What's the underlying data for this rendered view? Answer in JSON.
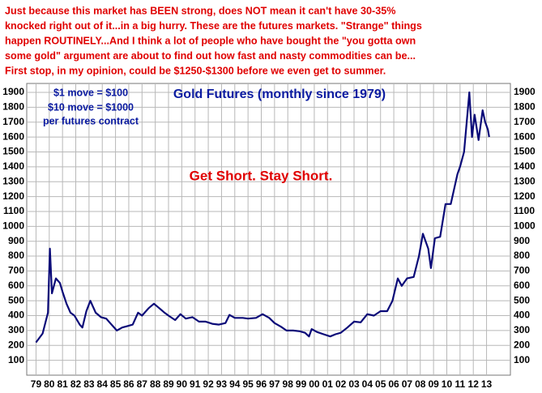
{
  "chart_data": {
    "type": "line",
    "header_lines": [
      "Just because this market has BEEN strong, does NOT mean it can't have 30-35%",
      "knocked right out of it...in a big hurry. These are the futures markets. \"Strange\" things",
      "happen ROUTINELY...And I think a lot of people who have bought the \"you gotta own",
      "some gold\" argument are about to find out how fast and nasty commodities can be...",
      "First stop, in my opinion, could be $1250-$1300 before we even get to summer."
    ],
    "title": "Gold Futures (monthly since 1979)",
    "annotations": [
      "$1 move = $100",
      "$10 move = $1000",
      "per futures contract",
      "Get Short. Stay Short."
    ],
    "color": "#0a0a78",
    "grid": true,
    "xlim": [
      1978.3,
      2014.8
    ],
    "ylim": [
      0,
      1960
    ],
    "yticks": [
      100,
      200,
      300,
      400,
      500,
      600,
      700,
      800,
      900,
      1000,
      1100,
      1200,
      1300,
      1400,
      1500,
      1600,
      1700,
      1800,
      1900
    ],
    "xticks": [
      {
        "value": 1979,
        "label": "79"
      },
      {
        "value": 1980,
        "label": "80"
      },
      {
        "value": 1981,
        "label": "81"
      },
      {
        "value": 1982,
        "label": "82"
      },
      {
        "value": 1983,
        "label": "83"
      },
      {
        "value": 1984,
        "label": "84"
      },
      {
        "value": 1985,
        "label": "85"
      },
      {
        "value": 1986,
        "label": "86"
      },
      {
        "value": 1987,
        "label": "87"
      },
      {
        "value": 1988,
        "label": "88"
      },
      {
        "value": 1989,
        "label": "89"
      },
      {
        "value": 1990,
        "label": "90"
      },
      {
        "value": 1991,
        "label": "91"
      },
      {
        "value": 1992,
        "label": "92"
      },
      {
        "value": 1993,
        "label": "93"
      },
      {
        "value": 1994,
        "label": "94"
      },
      {
        "value": 1995,
        "label": "95"
      },
      {
        "value": 1996,
        "label": "96"
      },
      {
        "value": 1997,
        "label": "97"
      },
      {
        "value": 1998,
        "label": "98"
      },
      {
        "value": 1999,
        "label": "99"
      },
      {
        "value": 2000,
        "label": "00"
      },
      {
        "value": 2001,
        "label": "01"
      },
      {
        "value": 2002,
        "label": "02"
      },
      {
        "value": 2003,
        "label": "03"
      },
      {
        "value": 2004,
        "label": "04"
      },
      {
        "value": 2005,
        "label": "05"
      },
      {
        "value": 2006,
        "label": "06"
      },
      {
        "value": 2007,
        "label": "07"
      },
      {
        "value": 2008,
        "label": "08"
      },
      {
        "value": 2009,
        "label": "09"
      },
      {
        "value": 2010,
        "label": "10"
      },
      {
        "value": 2011,
        "label": "11"
      },
      {
        "value": 2012,
        "label": "12"
      },
      {
        "value": 2013,
        "label": "13"
      }
    ],
    "x": [
      1979.0,
      1979.5,
      1979.9,
      1980.05,
      1980.2,
      1980.5,
      1980.8,
      1981.0,
      1981.3,
      1981.6,
      1981.9,
      1982.3,
      1982.5,
      1982.8,
      1983.1,
      1983.5,
      1983.9,
      1984.3,
      1984.7,
      1985.1,
      1985.5,
      1985.9,
      1986.3,
      1986.7,
      1987.0,
      1987.5,
      1987.9,
      1988.3,
      1988.7,
      1989.0,
      1989.5,
      1989.9,
      1990.3,
      1990.8,
      1991.3,
      1991.8,
      1992.3,
      1992.8,
      1993.3,
      1993.6,
      1994.0,
      1994.6,
      1995.0,
      1995.6,
      1996.1,
      1996.6,
      1997.0,
      1997.5,
      1997.9,
      1998.4,
      1998.9,
      1999.3,
      1999.6,
      1999.8,
      2000.2,
      2000.7,
      2001.2,
      2001.6,
      2002.0,
      2002.5,
      2003.0,
      2003.5,
      2004.0,
      2004.5,
      2005.0,
      2005.5,
      2005.9,
      2006.3,
      2006.6,
      2007.0,
      2007.5,
      2007.9,
      2008.2,
      2008.6,
      2008.8,
      2009.1,
      2009.5,
      2009.9,
      2010.3,
      2010.8,
      2011.0,
      2011.3,
      2011.6,
      2011.7,
      2011.9,
      2012.1,
      2012.4,
      2012.7,
      2012.9,
      2013.1,
      2013.2
    ],
    "values": [
      220,
      280,
      420,
      850,
      550,
      650,
      620,
      560,
      480,
      420,
      400,
      340,
      320,
      430,
      500,
      420,
      390,
      380,
      340,
      300,
      320,
      330,
      340,
      420,
      400,
      450,
      480,
      450,
      420,
      400,
      370,
      410,
      380,
      390,
      360,
      360,
      345,
      340,
      350,
      405,
      385,
      385,
      380,
      385,
      410,
      385,
      350,
      325,
      300,
      300,
      295,
      285,
      260,
      310,
      290,
      275,
      260,
      275,
      285,
      320,
      360,
      355,
      410,
      400,
      430,
      430,
      500,
      650,
      600,
      650,
      660,
      800,
      950,
      850,
      720,
      920,
      930,
      1150,
      1150,
      1350,
      1400,
      1500,
      1800,
      1900,
      1600,
      1750,
      1580,
      1780,
      1700,
      1650,
      1600
    ]
  }
}
